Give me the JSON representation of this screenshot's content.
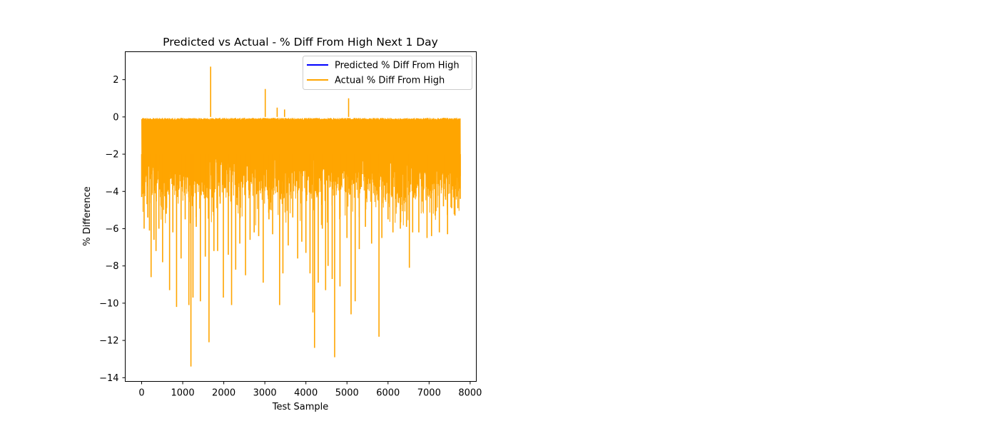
{
  "chart_data": {
    "type": "line",
    "title": "Predicted vs Actual - % Diff From High Next 1 Day",
    "xlabel": "Test Sample",
    "ylabel": "% Difference",
    "xlim": [
      -400,
      8150
    ],
    "ylim": [
      -14.2,
      3.5
    ],
    "x_ticks": [
      0,
      1000,
      2000,
      3000,
      4000,
      5000,
      6000,
      7000,
      8000
    ],
    "y_ticks": [
      -14,
      -12,
      -10,
      -8,
      -6,
      -4,
      -2,
      0,
      2
    ],
    "x_tick_labels": [
      "0",
      "1000",
      "2000",
      "3000",
      "4000",
      "5000",
      "6000",
      "7000",
      "8000"
    ],
    "y_tick_labels": [
      "−14",
      "−12",
      "−10",
      "−8",
      "−6",
      "−4",
      "−2",
      "0",
      "2"
    ],
    "grid": false,
    "legend_position": "top-right",
    "series": [
      {
        "name": "Predicted % Diff From High",
        "color": "#0000ff",
        "x": [],
        "values": []
      },
      {
        "name": "Actual % Diff From High",
        "color": "#ffa500",
        "x": [
          0,
          60,
          90,
          150,
          190,
          230,
          300,
          350,
          420,
          510,
          600,
          680,
          760,
          850,
          960,
          1060,
          1150,
          1200,
          1250,
          1330,
          1430,
          1550,
          1640,
          1680,
          1760,
          1850,
          1990,
          2110,
          2190,
          2290,
          2390,
          2530,
          2640,
          2740,
          2850,
          2960,
          3010,
          3100,
          3190,
          3300,
          3360,
          3440,
          3480,
          3570,
          3680,
          3800,
          3900,
          4000,
          4100,
          4170,
          4210,
          4300,
          4400,
          4480,
          4540,
          4640,
          4700,
          4830,
          5000,
          5040,
          5100,
          5200,
          5300,
          5450,
          5600,
          5780,
          5850,
          6000,
          6120,
          6300,
          6450,
          6520,
          6600,
          6750,
          6950,
          7060,
          7150,
          7250,
          7350,
          7450,
          7550,
          7630,
          7700,
          7760
        ],
        "values": [
          -4.3,
          -6.0,
          -3.5,
          -5.4,
          -6.1,
          -8.6,
          -6.6,
          -7.2,
          -6.0,
          -7.8,
          -5.2,
          -9.3,
          -6.2,
          -10.2,
          -7.6,
          -5.5,
          -10.1,
          -13.4,
          -9.7,
          -5.9,
          -9.9,
          -7.5,
          -12.1,
          2.7,
          -7.2,
          -7.2,
          -9.7,
          -7.4,
          -10.1,
          -8.2,
          -6.8,
          -8.5,
          -6.6,
          -6.2,
          -6.4,
          -8.9,
          1.5,
          -5.5,
          -6.3,
          0.5,
          -10.1,
          -8.4,
          0.4,
          -6.9,
          -5.4,
          -7.6,
          -6.7,
          -7.3,
          -8.4,
          -10.5,
          -12.4,
          -8.9,
          -6.0,
          -9.3,
          -8.0,
          -8.7,
          -12.9,
          -9.1,
          -6.5,
          1.0,
          -10.6,
          -9.9,
          -7.1,
          -5.9,
          -6.8,
          -11.8,
          -6.5,
          -5.5,
          -6.2,
          -6.0,
          -5.9,
          -8.1,
          -6.2,
          -6.2,
          -6.5,
          -6.4,
          -5.3,
          -6.2,
          -4.8,
          -6.3,
          -4.9,
          -5.3,
          -4.9,
          -4.4
        ]
      }
    ]
  }
}
